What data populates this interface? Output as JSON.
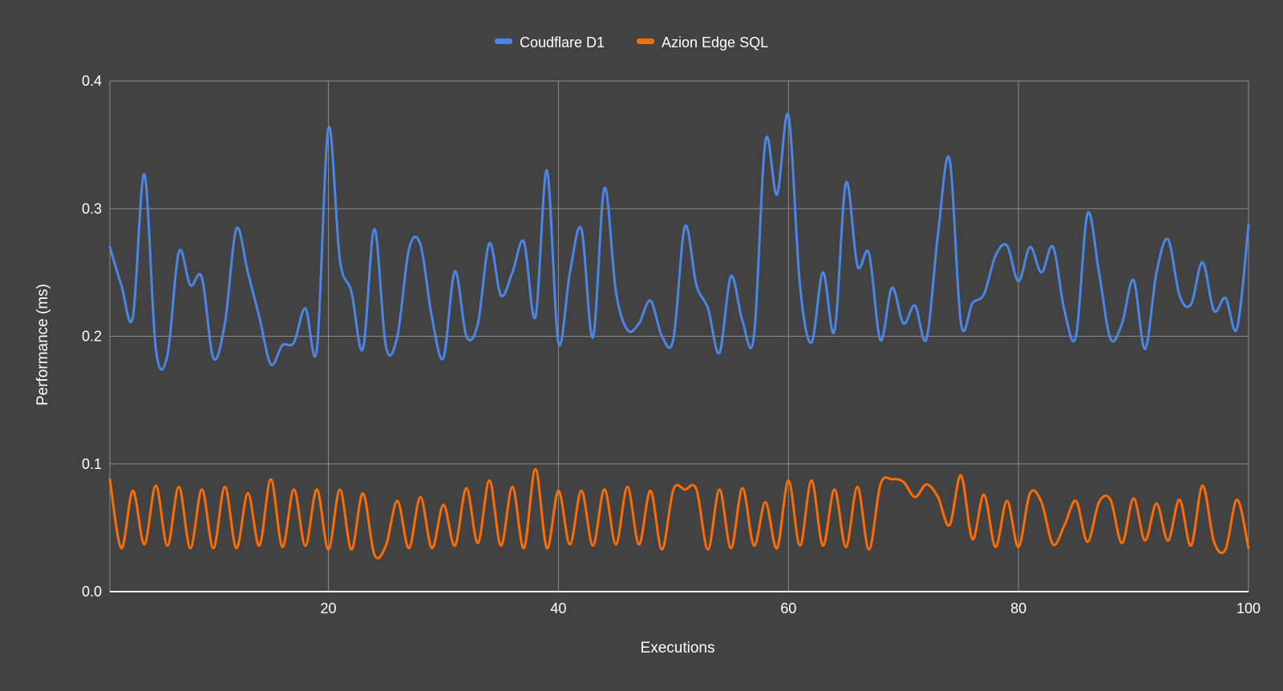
{
  "chart_data": {
    "type": "line",
    "title": "",
    "xlabel": "Executions",
    "ylabel": "Performance (ms)",
    "xlim": [
      1,
      100
    ],
    "ylim": [
      0.0,
      0.4
    ],
    "x_ticks": [
      20,
      40,
      60,
      80,
      100
    ],
    "x_tick_labels": [
      "20",
      "40",
      "60",
      "80",
      "100"
    ],
    "y_ticks": [
      0.0,
      0.1,
      0.2,
      0.3,
      0.4
    ],
    "y_tick_labels": [
      "0.0",
      "0.1",
      "0.2",
      "0.3",
      "0.4"
    ],
    "grid": true,
    "legend_position": "top-center",
    "x": [
      1,
      2,
      3,
      4,
      5,
      6,
      7,
      8,
      9,
      10,
      11,
      12,
      13,
      14,
      15,
      16,
      17,
      18,
      19,
      20,
      21,
      22,
      23,
      24,
      25,
      26,
      27,
      28,
      29,
      30,
      31,
      32,
      33,
      34,
      35,
      36,
      37,
      38,
      39,
      40,
      41,
      42,
      43,
      44,
      45,
      46,
      47,
      48,
      49,
      50,
      51,
      52,
      53,
      54,
      55,
      56,
      57,
      58,
      59,
      60,
      61,
      62,
      63,
      64,
      65,
      66,
      67,
      68,
      69,
      70,
      71,
      72,
      73,
      74,
      75,
      76,
      77,
      78,
      79,
      80,
      81,
      82,
      83,
      84,
      85,
      86,
      87,
      88,
      89,
      90,
      91,
      92,
      93,
      94,
      95,
      96,
      97,
      98,
      99,
      100
    ],
    "series": [
      {
        "name": "Coudflare D1",
        "color": "#4a86e8",
        "values": [
          0.27,
          0.24,
          0.215,
          0.327,
          0.19,
          0.185,
          0.266,
          0.24,
          0.246,
          0.183,
          0.21,
          0.284,
          0.25,
          0.215,
          0.178,
          0.193,
          0.195,
          0.222,
          0.19,
          0.363,
          0.26,
          0.235,
          0.19,
          0.284,
          0.192,
          0.2,
          0.268,
          0.272,
          0.215,
          0.183,
          0.251,
          0.2,
          0.21,
          0.273,
          0.232,
          0.25,
          0.274,
          0.215,
          0.33,
          0.195,
          0.25,
          0.284,
          0.199,
          0.316,
          0.235,
          0.205,
          0.21,
          0.228,
          0.2,
          0.198,
          0.286,
          0.24,
          0.222,
          0.187,
          0.247,
          0.212,
          0.2,
          0.353,
          0.311,
          0.373,
          0.24,
          0.195,
          0.25,
          0.204,
          0.32,
          0.255,
          0.265,
          0.197,
          0.238,
          0.21,
          0.224,
          0.198,
          0.28,
          0.339,
          0.21,
          0.226,
          0.233,
          0.263,
          0.271,
          0.243,
          0.27,
          0.25,
          0.27,
          0.22,
          0.2,
          0.296,
          0.25,
          0.198,
          0.21,
          0.244,
          0.19,
          0.25,
          0.276,
          0.232,
          0.225,
          0.258,
          0.22,
          0.23,
          0.206,
          0.287
        ]
      },
      {
        "name": "Azion Edge SQL",
        "color": "#ff6d01",
        "values": [
          0.088,
          0.034,
          0.079,
          0.037,
          0.083,
          0.036,
          0.082,
          0.034,
          0.08,
          0.034,
          0.082,
          0.034,
          0.077,
          0.036,
          0.088,
          0.035,
          0.08,
          0.036,
          0.08,
          0.033,
          0.08,
          0.033,
          0.077,
          0.029,
          0.036,
          0.071,
          0.034,
          0.074,
          0.034,
          0.068,
          0.036,
          0.081,
          0.038,
          0.087,
          0.036,
          0.082,
          0.034,
          0.096,
          0.034,
          0.079,
          0.037,
          0.079,
          0.036,
          0.08,
          0.037,
          0.082,
          0.037,
          0.079,
          0.033,
          0.08,
          0.08,
          0.08,
          0.033,
          0.08,
          0.034,
          0.081,
          0.036,
          0.07,
          0.034,
          0.087,
          0.036,
          0.087,
          0.036,
          0.08,
          0.035,
          0.082,
          0.033,
          0.084,
          0.088,
          0.086,
          0.074,
          0.084,
          0.074,
          0.052,
          0.091,
          0.041,
          0.076,
          0.035,
          0.071,
          0.035,
          0.077,
          0.07,
          0.037,
          0.052,
          0.071,
          0.039,
          0.07,
          0.072,
          0.038,
          0.073,
          0.04,
          0.069,
          0.04,
          0.072,
          0.036,
          0.083,
          0.039,
          0.033,
          0.072,
          0.034
        ]
      }
    ]
  }
}
